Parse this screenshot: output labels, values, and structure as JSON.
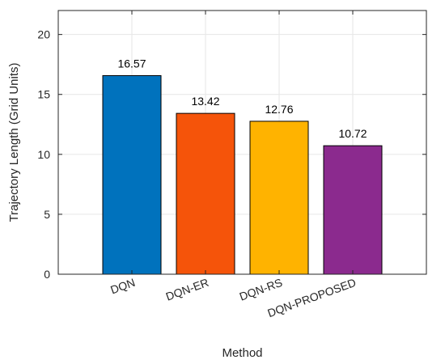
{
  "chart_data": {
    "type": "bar",
    "categories": [
      "DQN",
      "DQN-ER",
      "DQN-RS",
      "DQN-PROPOSED"
    ],
    "values": [
      16.57,
      13.42,
      12.76,
      10.72
    ],
    "value_labels": [
      "16.57",
      "13.42",
      "12.76",
      "10.72"
    ],
    "colors": [
      "#0072BD",
      "#F5540A",
      "#FFB300",
      "#8B2A8E"
    ],
    "xlabel": "Method",
    "ylabel": "Trajectory Length (Grid Units)",
    "ylim": [
      0,
      22
    ],
    "yticks": [
      0,
      5,
      10,
      15,
      20
    ],
    "ytick_labels": [
      "0",
      "5",
      "10",
      "15",
      "20"
    ],
    "grid": true,
    "xtick_rotation": "rotated"
  }
}
